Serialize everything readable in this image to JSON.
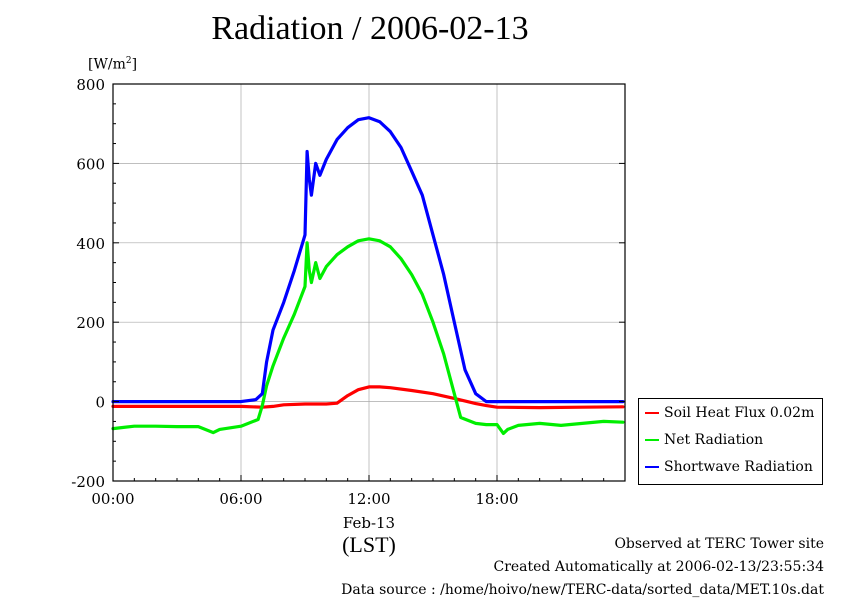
{
  "title_main": "Radiation / 2006-02-13",
  "unit_label": "[W/m",
  "unit_sup": "2",
  "unit_close": "]",
  "xlabel_date": "Feb-13",
  "xlabel_lst": "(LST)",
  "footer": {
    "line1": "Observed at TERC Tower site",
    "line2": "Created Automatically at 2006-02-13/23:55:34",
    "line3": "Data source : /home/hoivo/new/TERC-data/sorted_data/MET.10s.dat"
  },
  "colors": {
    "soil": "#ff0000",
    "net": "#00ee00",
    "short": "#0000ff"
  },
  "chart_data": {
    "type": "line",
    "xlabel": "(LST)",
    "ylabel": "[W/m2]",
    "ylim": [
      -200,
      800
    ],
    "xlim": [
      0,
      24
    ],
    "yticks": [
      -200,
      0,
      200,
      400,
      600,
      800
    ],
    "xticks": [
      {
        "value": 0,
        "label": "00:00"
      },
      {
        "value": 6,
        "label": "06:00"
      },
      {
        "value": 12,
        "label": "12:00"
      },
      {
        "value": 18,
        "label": "18:00"
      }
    ],
    "grid": true,
    "legend_position": "right",
    "series": [
      {
        "name": "Soil Heat Flux 0.02m",
        "color": "#ff0000",
        "x": [
          0,
          2,
          4,
          6,
          7,
          7.5,
          8,
          9,
          10,
          10.5,
          11,
          11.5,
          12,
          12.5,
          13,
          14,
          15,
          16,
          17,
          17.5,
          18,
          20,
          22,
          23.9
        ],
        "y": [
          -12,
          -12,
          -12,
          -12,
          -14,
          -12,
          -8,
          -6,
          -6,
          -4,
          15,
          30,
          37,
          37,
          35,
          28,
          20,
          8,
          -5,
          -10,
          -14,
          -15,
          -14,
          -13
        ]
      },
      {
        "name": "Net Radiation",
        "color": "#00ee00",
        "x": [
          0,
          1,
          2,
          3,
          4,
          4.7,
          5,
          6,
          6.8,
          7,
          7.2,
          7.5,
          8,
          8.5,
          9,
          9.1,
          9.2,
          9.3,
          9.5,
          9.7,
          10,
          10.5,
          11,
          11.5,
          12,
          12.5,
          13,
          13.5,
          14,
          14.5,
          15,
          15.5,
          16,
          16.3,
          17,
          17.5,
          18,
          18.3,
          18.5,
          19,
          20,
          21,
          22,
          23,
          23.9
        ],
        "y": [
          -68,
          -62,
          -62,
          -63,
          -63,
          -78,
          -70,
          -62,
          -45,
          -10,
          40,
          90,
          160,
          220,
          290,
          400,
          330,
          300,
          350,
          310,
          340,
          370,
          390,
          405,
          410,
          405,
          390,
          360,
          320,
          270,
          200,
          120,
          20,
          -40,
          -55,
          -58,
          -58,
          -80,
          -70,
          -60,
          -55,
          -60,
          -55,
          -50,
          -52
        ]
      },
      {
        "name": "Shortwave Radiation",
        "color": "#0000ff",
        "x": [
          0,
          2,
          4,
          6,
          6.7,
          7,
          7.2,
          7.5,
          8,
          8.5,
          9,
          9.1,
          9.2,
          9.3,
          9.5,
          9.7,
          10,
          10.5,
          11,
          11.5,
          12,
          12.5,
          13,
          13.5,
          14,
          14.5,
          15,
          15.5,
          16,
          16.5,
          17,
          17.5,
          18,
          20,
          22,
          23.9
        ],
        "y": [
          0,
          0,
          0,
          0,
          5,
          20,
          100,
          180,
          250,
          330,
          420,
          630,
          560,
          520,
          600,
          570,
          610,
          660,
          690,
          710,
          715,
          705,
          680,
          640,
          580,
          520,
          420,
          320,
          200,
          80,
          20,
          0,
          0,
          0,
          0,
          0
        ]
      }
    ]
  }
}
